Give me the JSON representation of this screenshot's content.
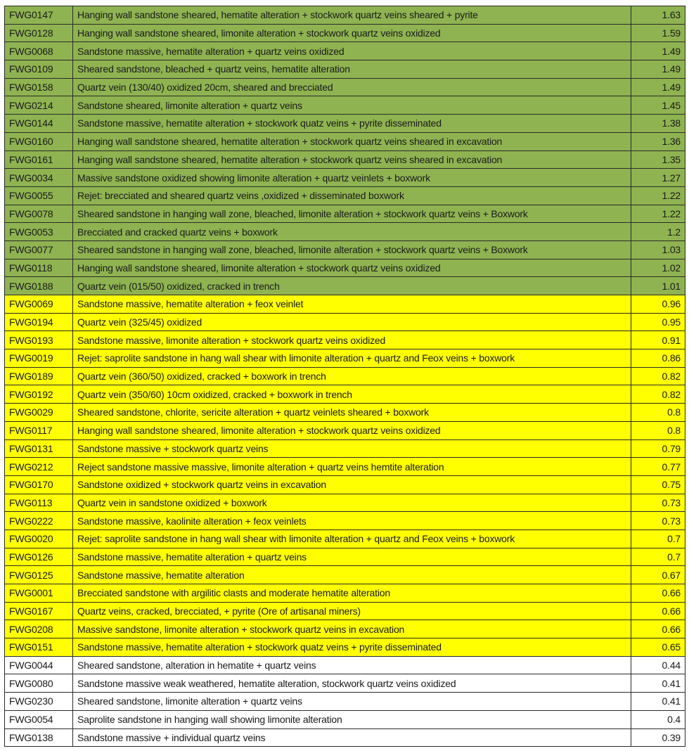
{
  "colors": {
    "high": "#8fb351",
    "medium": "#ffff00",
    "low": "#ffffff"
  },
  "rows": [
    {
      "id": "FWG0147",
      "desc": "Hanging wall sandstone sheared, hematite alteration + stockwork quartz veins sheared + pyrite",
      "value": "1.63",
      "group": "g"
    },
    {
      "id": "FWG0128",
      "desc": "Hanging wall sandstone sheared, limonite alteration + stockwork quartz veins oxidized",
      "value": "1.59",
      "group": "g"
    },
    {
      "id": "FWG0068",
      "desc": "Sandstone massive, hematite alteration + quartz veins oxidized",
      "value": "1.49",
      "group": "g"
    },
    {
      "id": "FWG0109",
      "desc": "Sheared sandstone, bleached + quartz veins, hematite alteration",
      "value": "1.49",
      "group": "g"
    },
    {
      "id": "FWG0158",
      "desc": "Quartz vein (130/40) oxidized 20cm, sheared and brecciated",
      "value": "1.49",
      "group": "g"
    },
    {
      "id": "FWG0214",
      "desc": "Sandstone sheared, limonite alteration + quartz veins",
      "value": "1.45",
      "group": "g"
    },
    {
      "id": "FWG0144",
      "desc": "Sandstone massive, hematite alteration + stockwork quatz veins + pyrite disseminated",
      "value": "1.38",
      "group": "g"
    },
    {
      "id": "FWG0160",
      "desc": "Hanging wall sandstone sheared, hematite alteration + stockwork quartz veins sheared in excavation",
      "value": "1.36",
      "group": "g"
    },
    {
      "id": "FWG0161",
      "desc": "Hanging wall sandstone sheared, hematite alteration + stockwork quartz veins sheared in excavation",
      "value": "1.35",
      "group": "g"
    },
    {
      "id": "FWG0034",
      "desc": "Massive sandstone oxidized showing limonite alteration + quartz veinlets + boxwork",
      "value": "1.27",
      "group": "g"
    },
    {
      "id": "FWG0055",
      "desc": "Rejet:  brecciated and sheared quartz veins ,oxidized + disseminated boxwork",
      "value": "1.22",
      "group": "g"
    },
    {
      "id": "FWG0078",
      "desc": "Sheared sandstone in hanging wall zone, bleached, limonite alteration +  stockwork quartz veins + Boxwork",
      "value": "1.22",
      "group": "g"
    },
    {
      "id": "FWG0053",
      "desc": "Brecciated and cracked quartz veins + boxwork",
      "value": "1.2",
      "group": "g"
    },
    {
      "id": "FWG0077",
      "desc": "Sheared sandstone in hanging wall zone, bleached, limonite alteration +  stockwork quartz veins + Boxwork",
      "value": "1.03",
      "group": "g"
    },
    {
      "id": "FWG0118",
      "desc": "Hanging wall sandstone sheared, limonite alteration + stockwork quartz veins oxidized",
      "value": "1.02",
      "group": "g"
    },
    {
      "id": "FWG0188",
      "desc": "Quartz vein (015/50) oxidized,  cracked in trench",
      "value": "1.01",
      "group": "g"
    },
    {
      "id": "FWG0069",
      "desc": "Sandstone massive, hematite alteration + feox veinlet",
      "value": "0.96",
      "group": "y"
    },
    {
      "id": "FWG0194",
      "desc": "Quartz vein (325/45) oxidized",
      "value": "0.95",
      "group": "y"
    },
    {
      "id": "FWG0193",
      "desc": "Sandstone massive, limonite alteration + stockwork quartz veins oxidized",
      "value": "0.91",
      "group": "y"
    },
    {
      "id": "FWG0019",
      "desc": "Rejet: saprolite sandstone in hang wall shear with limonite alteration + quartz and Feox veins + boxwork",
      "value": "0.86",
      "group": "y"
    },
    {
      "id": "FWG0189",
      "desc": "Quartz vein (360/50) oxidized,  cracked + boxwork in trench",
      "value": "0.82",
      "group": "y"
    },
    {
      "id": "FWG0192",
      "desc": "Quartz vein (350/60) 10cm oxidized,  cracked + boxwork in trench",
      "value": "0.82",
      "group": "y"
    },
    {
      "id": "FWG0029",
      "desc": "Sheared sandstone, chlorite, sericite alteration + quartz veinlets sheared + boxwork",
      "value": "0.8",
      "group": "y"
    },
    {
      "id": "FWG0117",
      "desc": "Hanging wall sandstone sheared, limonite alteration + stockwork quartz veins oxidized",
      "value": "0.8",
      "group": "y"
    },
    {
      "id": "FWG0131",
      "desc": "Sandstone massive + stockwork quartz veins",
      "value": "0.79",
      "group": "y"
    },
    {
      "id": "FWG0212",
      "desc": "Reject sandstone massive massive, limonite alteration + quartz veins hemtite alteration",
      "value": "0.77",
      "group": "y"
    },
    {
      "id": "FWG0170",
      "desc": "Sandstone oxidized + stockwork quartz veins in excavation",
      "value": "0.75",
      "group": "y"
    },
    {
      "id": "FWG0113",
      "desc": "Quartz vein in sandstone oxidized + boxwork",
      "value": "0.73",
      "group": "y"
    },
    {
      "id": "FWG0222",
      "desc": "Sandstone massive, kaolinite alteration + feox veinlets",
      "value": "0.73",
      "group": "y"
    },
    {
      "id": "FWG0020",
      "desc": "Rejet: saprolite sandstone in hang wall shear with limonite alteration + quartz and Feox veins + boxwork",
      "value": "0.7",
      "group": "y"
    },
    {
      "id": "FWG0126",
      "desc": "Sandstone massive, hematite alteration + quartz veins",
      "value": "0.7",
      "group": "y"
    },
    {
      "id": "FWG0125",
      "desc": "Sandstone massive, hematite alteration",
      "value": "0.67",
      "group": "y"
    },
    {
      "id": "FWG0001",
      "desc": "Brecciated sandstone with argilitic clasts and moderate hematite alteration",
      "value": "0.66",
      "group": "y"
    },
    {
      "id": "FWG0167",
      "desc": "Quartz veins, cracked, brecciated, + pyrite (Ore of artisanal miners)",
      "value": "0.66",
      "group": "y"
    },
    {
      "id": "FWG0208",
      "desc": "Massive sandstone, limonite alteration + stockwork quartz veins in excavation",
      "value": "0.66",
      "group": "y"
    },
    {
      "id": "FWG0151",
      "desc": "Sandstone massive, hematite alteration + stockwork quatz veins + pyrite disseminated",
      "value": "0.65",
      "group": "y"
    },
    {
      "id": "FWG0044",
      "desc": "Sheared sandstone, alteration in hematite + quartz veins",
      "value": "0.44",
      "group": "w"
    },
    {
      "id": "FWG0080",
      "desc": "Sandstone massive weak weathered, hematite alteration, stockwork quartz veins oxidized",
      "value": "0.41",
      "group": "w"
    },
    {
      "id": "FWG0230",
      "desc": "Sheared sandstone, limonite alteration + quartz veins",
      "value": "0.41",
      "group": "w"
    },
    {
      "id": "FWG0054",
      "desc": "Saprolite sandstone in hanging wall showing limonite alteration",
      "value": "0.4",
      "group": "w"
    },
    {
      "id": "FWG0138",
      "desc": "Sandstone massive + individual quartz veins",
      "value": "0.39",
      "group": "w"
    }
  ]
}
